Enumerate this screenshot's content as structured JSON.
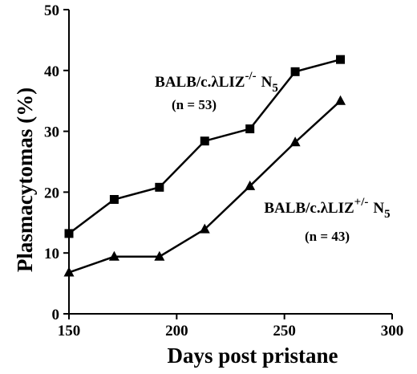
{
  "chart_data": {
    "type": "line",
    "xlabel": "Days post pristane",
    "ylabel": "Plasmacytomas (%)",
    "xlim": [
      150,
      300
    ],
    "ylim": [
      0,
      50
    ],
    "x_ticks": [
      150,
      200,
      250,
      300
    ],
    "y_ticks": [
      0,
      10,
      20,
      30,
      40,
      50
    ],
    "grid": false,
    "series": [
      {
        "marker": "square",
        "color": "#000000",
        "x": [
          150,
          171,
          192,
          213,
          234,
          255,
          276
        ],
        "y": [
          13.2,
          18.8,
          20.8,
          28.4,
          30.4,
          39.8,
          41.8
        ]
      },
      {
        "marker": "triangle",
        "color": "#000000",
        "x": [
          150,
          171,
          192,
          213,
          234,
          255,
          276
        ],
        "y": [
          6.8,
          9.4,
          9.4,
          13.9,
          21.0,
          28.2,
          35.0
        ]
      }
    ],
    "annotations": [
      {
        "strain": "BALB/c.λLIZ",
        "genotype": "-/-",
        "gen": "N",
        "gen_sub": "5",
        "count": "(n = 53)"
      },
      {
        "strain": "BALB/c.λLIZ",
        "genotype": "+/-",
        "gen": "N",
        "gen_sub": "5",
        "count": "(n = 43)"
      }
    ]
  }
}
